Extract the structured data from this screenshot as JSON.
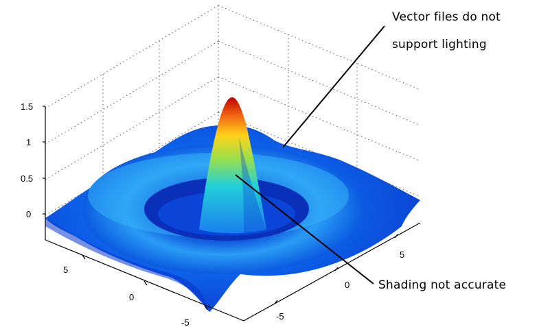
{
  "chart_data": {
    "type": "surface",
    "title": "",
    "function": "sinc",
    "colormap": "jet",
    "zlim": [
      -0.3,
      1.5
    ],
    "ztick_labels": [
      "0",
      "0.5",
      "1",
      "1.5"
    ],
    "xtick_labels": [
      "-5",
      "0",
      "5"
    ],
    "ytick_labels": [
      "-5",
      "0",
      "5"
    ],
    "grid": true,
    "peak_value": 1.5,
    "annotations": [
      {
        "lines": [
          "Vector files do not",
          "support lighting"
        ]
      },
      {
        "lines": [
          "Shading not accurate"
        ]
      }
    ]
  }
}
